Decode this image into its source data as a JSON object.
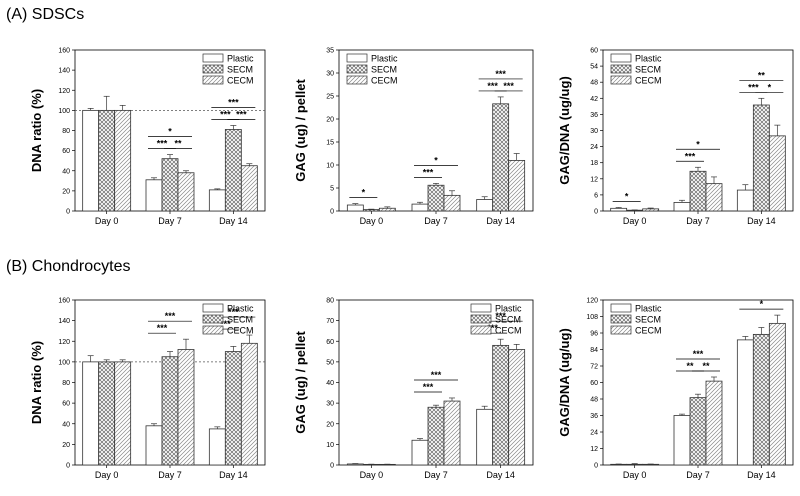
{
  "sections": [
    {
      "title": "(A) SDSCs"
    },
    {
      "title": "(B) Chondrocytes"
    }
  ],
  "colors": {
    "axis": "#000000",
    "bar_stroke": "#333333",
    "hatch_secm": "#666666",
    "hatch_cecm": "#888888",
    "refline": "#555555"
  },
  "chart_data": [
    {
      "type": "bar",
      "section": 0,
      "ylabel": "DNA ratio (%)",
      "ylim": [
        0,
        160
      ],
      "yticks": [
        0,
        20,
        40,
        60,
        80,
        100,
        120,
        140,
        160
      ],
      "categories": [
        "Day 0",
        "Day 7",
        "Day 14"
      ],
      "reference_line": 100,
      "legend_position": "top-right",
      "series": [
        {
          "name": "Plastic",
          "pattern": "plain",
          "values": [
            100,
            31,
            21
          ],
          "errors": [
            2,
            2,
            1
          ]
        },
        {
          "name": "SECM",
          "pattern": "crosshatch",
          "values": [
            100,
            52,
            81
          ],
          "errors": [
            14,
            4,
            4
          ]
        },
        {
          "name": "CECM",
          "pattern": "diagonal",
          "values": [
            100,
            38,
            45
          ],
          "errors": [
            5,
            2,
            2
          ]
        }
      ],
      "significance": [
        {
          "text": "*",
          "from": [
            1,
            0
          ],
          "to": [
            1,
            2
          ],
          "level": 2
        },
        {
          "text": "***",
          "from": [
            1,
            0
          ],
          "to": [
            1,
            1
          ],
          "level": 1
        },
        {
          "text": "**",
          "from": [
            1,
            1
          ],
          "to": [
            1,
            2
          ],
          "level": 1
        },
        {
          "text": "***",
          "from": [
            2,
            0
          ],
          "to": [
            2,
            2
          ],
          "level": 2
        },
        {
          "text": "***",
          "from": [
            2,
            0
          ],
          "to": [
            2,
            1
          ],
          "level": 1
        },
        {
          "text": "***",
          "from": [
            2,
            1
          ],
          "to": [
            2,
            2
          ],
          "level": 1
        }
      ]
    },
    {
      "type": "bar",
      "section": 0,
      "ylabel": "GAG (ug) / pellet",
      "ylim": [
        0,
        35
      ],
      "yticks": [
        0,
        5,
        10,
        15,
        20,
        25,
        30,
        35
      ],
      "categories": [
        "Day 0",
        "Day 7",
        "Day 14"
      ],
      "legend_position": "top-left",
      "series": [
        {
          "name": "Plastic",
          "pattern": "plain",
          "values": [
            1.3,
            1.5,
            2.5
          ],
          "errors": [
            0.3,
            0.4,
            0.6
          ]
        },
        {
          "name": "SECM",
          "pattern": "crosshatch",
          "values": [
            0.3,
            5.6,
            23.3
          ],
          "errors": [
            0.1,
            0.4,
            1.5
          ]
        },
        {
          "name": "CECM",
          "pattern": "diagonal",
          "values": [
            0.6,
            3.4,
            11.0
          ],
          "errors": [
            0.3,
            1.0,
            1.5
          ]
        }
      ],
      "significance": [
        {
          "text": "*",
          "from": [
            0,
            0
          ],
          "to": [
            0,
            1
          ],
          "level": 1
        },
        {
          "text": "*",
          "from": [
            1,
            0
          ],
          "to": [
            1,
            2
          ],
          "level": 2
        },
        {
          "text": "***",
          "from": [
            1,
            0
          ],
          "to": [
            1,
            1
          ],
          "level": 1
        },
        {
          "text": "***",
          "from": [
            2,
            0
          ],
          "to": [
            2,
            2
          ],
          "level": 2
        },
        {
          "text": "***",
          "from": [
            2,
            0
          ],
          "to": [
            2,
            1
          ],
          "level": 1
        },
        {
          "text": "***",
          "from": [
            2,
            1
          ],
          "to": [
            2,
            2
          ],
          "level": 1
        }
      ]
    },
    {
      "type": "bar",
      "section": 0,
      "ylabel": "GAG/DNA (ug/ug)",
      "ylim": [
        0,
        60
      ],
      "yticks": [
        0,
        6,
        12,
        18,
        24,
        30,
        36,
        42,
        48,
        54,
        60
      ],
      "categories": [
        "Day 0",
        "Day 7",
        "Day 14"
      ],
      "legend_position": "top-left",
      "series": [
        {
          "name": "Plastic",
          "pattern": "plain",
          "values": [
            1.0,
            3.2,
            7.8
          ],
          "errors": [
            0.3,
            0.8,
            2.0
          ]
        },
        {
          "name": "SECM",
          "pattern": "crosshatch",
          "values": [
            0.3,
            14.8,
            39.5
          ],
          "errors": [
            0.1,
            1.5,
            2.5
          ]
        },
        {
          "name": "CECM",
          "pattern": "diagonal",
          "values": [
            0.8,
            10.2,
            28.0
          ],
          "errors": [
            0.3,
            2.5,
            4.0
          ]
        }
      ],
      "significance": [
        {
          "text": "*",
          "from": [
            0,
            0
          ],
          "to": [
            0,
            1
          ],
          "level": 1
        },
        {
          "text": "*",
          "from": [
            1,
            0
          ],
          "to": [
            1,
            2
          ],
          "level": 2
        },
        {
          "text": "***",
          "from": [
            1,
            0
          ],
          "to": [
            1,
            1
          ],
          "level": 1
        },
        {
          "text": "**",
          "from": [
            2,
            0
          ],
          "to": [
            2,
            2
          ],
          "level": 2
        },
        {
          "text": "***",
          "from": [
            2,
            0
          ],
          "to": [
            2,
            1
          ],
          "level": 1
        },
        {
          "text": "*",
          "from": [
            2,
            1
          ],
          "to": [
            2,
            2
          ],
          "level": 1
        }
      ]
    },
    {
      "type": "bar",
      "section": 1,
      "ylabel": "DNA ratio (%)",
      "ylim": [
        0,
        160
      ],
      "yticks": [
        0,
        20,
        40,
        60,
        80,
        100,
        120,
        140,
        160
      ],
      "categories": [
        "Day 0",
        "Day 7",
        "Day 14"
      ],
      "reference_line": 100,
      "legend_position": "top-right",
      "series": [
        {
          "name": "Plastic",
          "pattern": "plain",
          "values": [
            100,
            38,
            35
          ],
          "errors": [
            6,
            2,
            2
          ]
        },
        {
          "name": "SECM",
          "pattern": "crosshatch",
          "values": [
            100,
            105,
            110
          ],
          "errors": [
            2,
            5,
            5
          ]
        },
        {
          "name": "CECM",
          "pattern": "diagonal",
          "values": [
            100,
            112,
            118
          ],
          "errors": [
            2,
            10,
            8
          ]
        }
      ],
      "significance": [
        {
          "text": "***",
          "from": [
            1,
            0
          ],
          "to": [
            1,
            2
          ],
          "level": 2
        },
        {
          "text": "***",
          "from": [
            1,
            0
          ],
          "to": [
            1,
            1
          ],
          "level": 1
        },
        {
          "text": "***",
          "from": [
            2,
            0
          ],
          "to": [
            2,
            2
          ],
          "level": 2
        },
        {
          "text": "***",
          "from": [
            2,
            0
          ],
          "to": [
            2,
            1
          ],
          "level": 1
        }
      ]
    },
    {
      "type": "bar",
      "section": 1,
      "ylabel": "GAG (ug) / pellet",
      "ylim": [
        0,
        80
      ],
      "yticks": [
        0,
        10,
        20,
        30,
        40,
        50,
        60,
        70,
        80
      ],
      "categories": [
        "Day 0",
        "Day 7",
        "Day 14"
      ],
      "legend_position": "top-right",
      "series": [
        {
          "name": "Plastic",
          "pattern": "plain",
          "values": [
            0.5,
            12,
            27
          ],
          "errors": [
            0.2,
            0.8,
            1.5
          ]
        },
        {
          "name": "SECM",
          "pattern": "crosshatch",
          "values": [
            0.3,
            28,
            58
          ],
          "errors": [
            0.1,
            1.0,
            3.0
          ]
        },
        {
          "name": "CECM",
          "pattern": "diagonal",
          "values": [
            0.3,
            31,
            56
          ],
          "errors": [
            0.1,
            1.5,
            2.5
          ]
        }
      ],
      "significance": [
        {
          "text": "***",
          "from": [
            1,
            0
          ],
          "to": [
            1,
            2
          ],
          "level": 2
        },
        {
          "text": "***",
          "from": [
            1,
            0
          ],
          "to": [
            1,
            1
          ],
          "level": 1
        },
        {
          "text": "***",
          "from": [
            2,
            0
          ],
          "to": [
            2,
            2
          ],
          "level": 2
        },
        {
          "text": "***",
          "from": [
            2,
            0
          ],
          "to": [
            2,
            1
          ],
          "level": 1
        }
      ]
    },
    {
      "type": "bar",
      "section": 1,
      "ylabel": "GAG/DNA (ug/ug)",
      "ylim": [
        0,
        120
      ],
      "yticks": [
        0,
        12,
        24,
        36,
        48,
        60,
        72,
        84,
        96,
        108,
        120
      ],
      "categories": [
        "Day 0",
        "Day 7",
        "Day 14"
      ],
      "legend_position": "top-left",
      "series": [
        {
          "name": "Plastic",
          "pattern": "plain",
          "values": [
            0.5,
            36,
            91
          ],
          "errors": [
            0.2,
            1.0,
            2.5
          ]
        },
        {
          "name": "SECM",
          "pattern": "crosshatch",
          "values": [
            0.5,
            49,
            95
          ],
          "errors": [
            0.5,
            2.5,
            5.0
          ]
        },
        {
          "name": "CECM",
          "pattern": "diagonal",
          "values": [
            0.5,
            61,
            103
          ],
          "errors": [
            0.2,
            3.0,
            6.0
          ]
        }
      ],
      "significance": [
        {
          "text": "***",
          "from": [
            1,
            0
          ],
          "to": [
            1,
            2
          ],
          "level": 2
        },
        {
          "text": "**",
          "from": [
            1,
            0
          ],
          "to": [
            1,
            1
          ],
          "level": 1
        },
        {
          "text": "**",
          "from": [
            1,
            1
          ],
          "to": [
            1,
            2
          ],
          "level": 1
        },
        {
          "text": "*",
          "from": [
            2,
            0
          ],
          "to": [
            2,
            2
          ],
          "level": 1
        }
      ]
    }
  ]
}
